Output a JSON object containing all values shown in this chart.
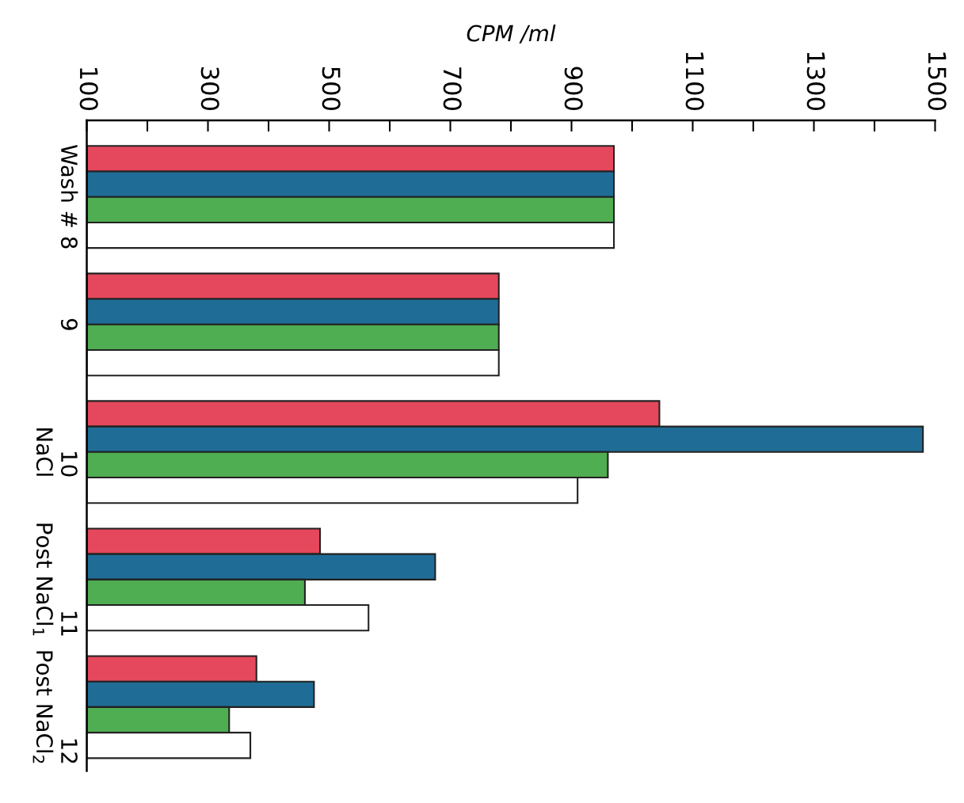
{
  "chart_data": {
    "type": "bar",
    "orientation": "horizontal",
    "xlabel": "CPM /ml",
    "categories": [
      "Wash # 8",
      "9",
      "10\nNaCl",
      "11\nPost NaCl$_{1}$",
      "12\nPost NaCl$_{2}$"
    ],
    "series": [
      {
        "color": "#e5485c",
        "values": [
          970,
          780,
          1045,
          485,
          380
        ]
      },
      {
        "color": "#1f6d96",
        "values": [
          970,
          780,
          1480,
          675,
          475
        ]
      },
      {
        "color": "#4fad52",
        "values": [
          970,
          780,
          960,
          460,
          335
        ]
      },
      {
        "color": "#ffffff",
        "values": [
          970,
          780,
          910,
          565,
          370
        ]
      }
    ],
    "xlim": [
      100,
      1500
    ],
    "xticks": [
      100,
      {
        "value": 200,
        "label": null
      },
      300,
      {
        "value": 400,
        "label": null
      },
      500,
      {
        "value": 600,
        "label": null
      },
      700,
      {
        "value": 800,
        "label": null
      },
      900,
      {
        "value": 1000,
        "label": null
      },
      1100,
      {
        "value": 1200,
        "label": null
      },
      1300,
      {
        "value": 1400,
        "label": null
      },
      1500
    ],
    "grid": false,
    "legend": false
  }
}
